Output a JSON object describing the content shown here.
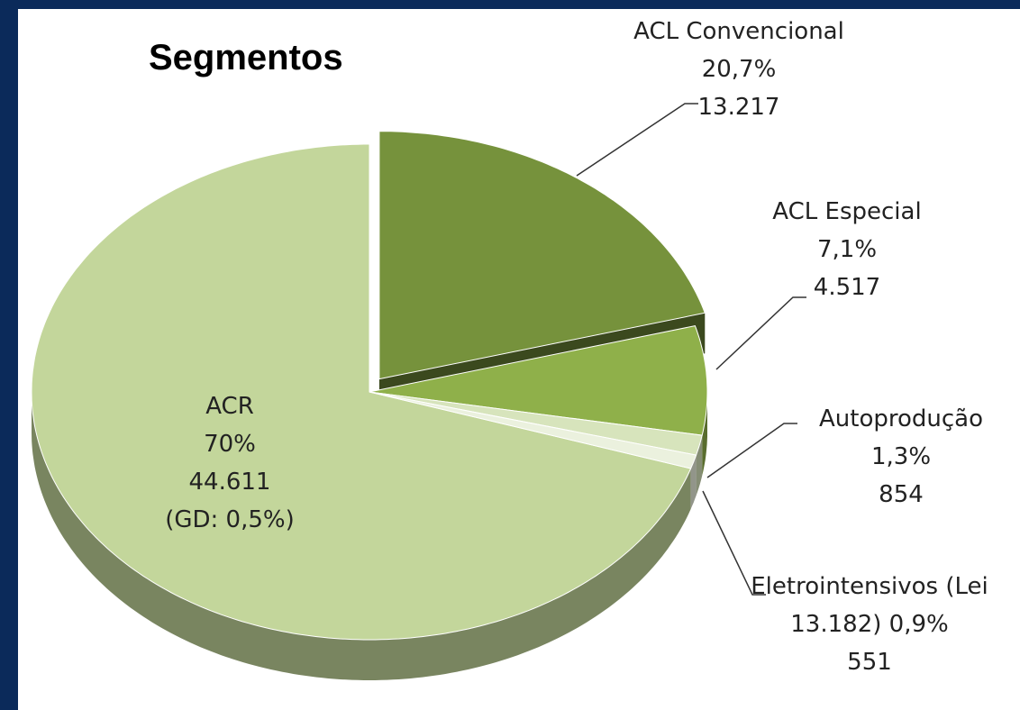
{
  "chart_data": {
    "type": "pie",
    "title": "Segmentos",
    "categories": [
      "ACR",
      "ACL Convencional",
      "ACL Especial",
      "Autoprodução",
      "Eletrointensivos (Lei 13.182)"
    ],
    "values": [
      70,
      20.7,
      7.1,
      1.3,
      0.9
    ],
    "value_labels": [
      "70%",
      "20,7%",
      "7,1%",
      "1,3%",
      "0,9%"
    ],
    "amounts": [
      44611,
      13217,
      4517,
      854,
      551
    ],
    "amount_labels": [
      "44.611",
      "13.217",
      "4.517",
      "854",
      "551"
    ],
    "colors": [
      "#c3d69b",
      "#76923c",
      "#8fb04a",
      "#d7e4bc",
      "#ebf1de"
    ],
    "annotation": "(GD: 0,5%)"
  }
}
